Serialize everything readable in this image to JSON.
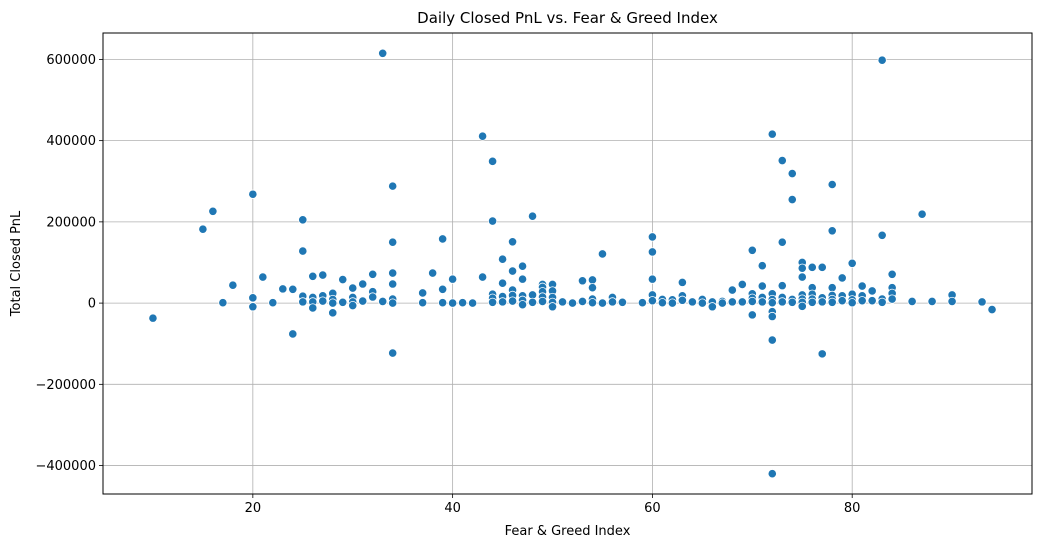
{
  "chart_data": {
    "type": "scatter",
    "title": "Daily Closed PnL vs. Fear & Greed Index",
    "xlabel": "Fear & Greed Index",
    "ylabel": "Total Closed PnL",
    "xlim": [
      5,
      98
    ],
    "ylim": [
      -470000,
      665000
    ],
    "xticks": [
      20,
      40,
      60,
      80
    ],
    "xtick_labels": [
      "20",
      "40",
      "60",
      "80"
    ],
    "yticks": [
      -400000,
      -200000,
      0,
      200000,
      400000,
      600000
    ],
    "ytick_labels": [
      "−400000",
      "−200000",
      "0",
      "200000",
      "400000",
      "600000"
    ],
    "grid": true,
    "marker_color": "#1f77b4",
    "points": [
      {
        "x": 10,
        "y": -37000
      },
      {
        "x": 15,
        "y": 182000
      },
      {
        "x": 16,
        "y": 226000
      },
      {
        "x": 17,
        "y": 1000
      },
      {
        "x": 18,
        "y": 44000
      },
      {
        "x": 20,
        "y": 268000
      },
      {
        "x": 20,
        "y": 13000
      },
      {
        "x": 20,
        "y": -9000
      },
      {
        "x": 21,
        "y": 64000
      },
      {
        "x": 22,
        "y": 1000
      },
      {
        "x": 23,
        "y": 35000
      },
      {
        "x": 24,
        "y": 34000
      },
      {
        "x": 24,
        "y": -76000
      },
      {
        "x": 25,
        "y": 205000
      },
      {
        "x": 25,
        "y": 128000
      },
      {
        "x": 25,
        "y": 17000
      },
      {
        "x": 25,
        "y": 3000
      },
      {
        "x": 26,
        "y": 66000
      },
      {
        "x": 26,
        "y": 14000
      },
      {
        "x": 26,
        "y": 3000
      },
      {
        "x": 26,
        "y": -12000
      },
      {
        "x": 27,
        "y": 69000
      },
      {
        "x": 27,
        "y": 18000
      },
      {
        "x": 27,
        "y": 5000
      },
      {
        "x": 28,
        "y": 24000
      },
      {
        "x": 28,
        "y": 9000
      },
      {
        "x": 28,
        "y": 0
      },
      {
        "x": 28,
        "y": -24000
      },
      {
        "x": 29,
        "y": 58000
      },
      {
        "x": 29,
        "y": 2000
      },
      {
        "x": 30,
        "y": 37000
      },
      {
        "x": 30,
        "y": 14000
      },
      {
        "x": 30,
        "y": 3000
      },
      {
        "x": 30,
        "y": -6000
      },
      {
        "x": 31,
        "y": 47000
      },
      {
        "x": 31,
        "y": 5000
      },
      {
        "x": 32,
        "y": 71000
      },
      {
        "x": 32,
        "y": 28000
      },
      {
        "x": 32,
        "y": 15000
      },
      {
        "x": 33,
        "y": 615000
      },
      {
        "x": 33,
        "y": 4000
      },
      {
        "x": 34,
        "y": 288000
      },
      {
        "x": 34,
        "y": 150000
      },
      {
        "x": 34,
        "y": 74000
      },
      {
        "x": 34,
        "y": 47000
      },
      {
        "x": 34,
        "y": 10000
      },
      {
        "x": 34,
        "y": 0
      },
      {
        "x": 34,
        "y": -123000
      },
      {
        "x": 37,
        "y": 25000
      },
      {
        "x": 37,
        "y": 1000
      },
      {
        "x": 38,
        "y": 74000
      },
      {
        "x": 39,
        "y": 158000
      },
      {
        "x": 39,
        "y": 34000
      },
      {
        "x": 39,
        "y": 1000
      },
      {
        "x": 40,
        "y": 59000
      },
      {
        "x": 40,
        "y": 0
      },
      {
        "x": 41,
        "y": 1000
      },
      {
        "x": 42,
        "y": 0
      },
      {
        "x": 43,
        "y": 411000
      },
      {
        "x": 43,
        "y": 64000
      },
      {
        "x": 44,
        "y": 349000
      },
      {
        "x": 44,
        "y": 202000
      },
      {
        "x": 44,
        "y": 22000
      },
      {
        "x": 44,
        "y": 12000
      },
      {
        "x": 44,
        "y": 2000
      },
      {
        "x": 45,
        "y": 108000
      },
      {
        "x": 45,
        "y": 49000
      },
      {
        "x": 45,
        "y": 16000
      },
      {
        "x": 45,
        "y": 3000
      },
      {
        "x": 46,
        "y": 151000
      },
      {
        "x": 46,
        "y": 79000
      },
      {
        "x": 46,
        "y": 32000
      },
      {
        "x": 46,
        "y": 19000
      },
      {
        "x": 46,
        "y": 5000
      },
      {
        "x": 47,
        "y": 91000
      },
      {
        "x": 47,
        "y": 59000
      },
      {
        "x": 47,
        "y": 18000
      },
      {
        "x": 47,
        "y": 7000
      },
      {
        "x": 47,
        "y": -4000
      },
      {
        "x": 48,
        "y": 214000
      },
      {
        "x": 48,
        "y": 20000
      },
      {
        "x": 48,
        "y": 2000
      },
      {
        "x": 49,
        "y": 46000
      },
      {
        "x": 49,
        "y": 39000
      },
      {
        "x": 49,
        "y": 28000
      },
      {
        "x": 49,
        "y": 15000
      },
      {
        "x": 49,
        "y": 4000
      },
      {
        "x": 50,
        "y": 46000
      },
      {
        "x": 50,
        "y": 30000
      },
      {
        "x": 50,
        "y": 14000
      },
      {
        "x": 50,
        "y": 2000
      },
      {
        "x": 50,
        "y": -9000
      },
      {
        "x": 51,
        "y": 3000
      },
      {
        "x": 52,
        "y": 0
      },
      {
        "x": 53,
        "y": 55000
      },
      {
        "x": 53,
        "y": 4000
      },
      {
        "x": 54,
        "y": 57000
      },
      {
        "x": 54,
        "y": 38000
      },
      {
        "x": 54,
        "y": 10000
      },
      {
        "x": 54,
        "y": 1000
      },
      {
        "x": 55,
        "y": 121000
      },
      {
        "x": 55,
        "y": 0
      },
      {
        "x": 56,
        "y": 14000
      },
      {
        "x": 56,
        "y": 3000
      },
      {
        "x": 57,
        "y": 2000
      },
      {
        "x": 59,
        "y": 1000
      },
      {
        "x": 60,
        "y": 163000
      },
      {
        "x": 60,
        "y": 126000
      },
      {
        "x": 60,
        "y": 59000
      },
      {
        "x": 60,
        "y": 20000
      },
      {
        "x": 60,
        "y": 6000
      },
      {
        "x": 61,
        "y": 9000
      },
      {
        "x": 61,
        "y": 1000
      },
      {
        "x": 62,
        "y": 8000
      },
      {
        "x": 62,
        "y": 0
      },
      {
        "x": 63,
        "y": 51000
      },
      {
        "x": 63,
        "y": 18000
      },
      {
        "x": 63,
        "y": 7000
      },
      {
        "x": 64,
        "y": 3000
      },
      {
        "x": 65,
        "y": 9000
      },
      {
        "x": 65,
        "y": 0
      },
      {
        "x": 66,
        "y": 3000
      },
      {
        "x": 66,
        "y": -9000
      },
      {
        "x": 67,
        "y": 4000
      },
      {
        "x": 67,
        "y": 0
      },
      {
        "x": 68,
        "y": 32000
      },
      {
        "x": 68,
        "y": 3000
      },
      {
        "x": 69,
        "y": 46000
      },
      {
        "x": 69,
        "y": 3000
      },
      {
        "x": 70,
        "y": 130000
      },
      {
        "x": 70,
        "y": 23000
      },
      {
        "x": 70,
        "y": 12000
      },
      {
        "x": 70,
        "y": 4000
      },
      {
        "x": 70,
        "y": -29000
      },
      {
        "x": 71,
        "y": 92000
      },
      {
        "x": 71,
        "y": 42000
      },
      {
        "x": 71,
        "y": 14000
      },
      {
        "x": 71,
        "y": 3000
      },
      {
        "x": 72,
        "y": 416000
      },
      {
        "x": 72,
        "y": 23000
      },
      {
        "x": 72,
        "y": 9000
      },
      {
        "x": 72,
        "y": 1000
      },
      {
        "x": 72,
        "y": -21000
      },
      {
        "x": 72,
        "y": -33000
      },
      {
        "x": 72,
        "y": -91000
      },
      {
        "x": 72,
        "y": -420000
      },
      {
        "x": 73,
        "y": 351000
      },
      {
        "x": 73,
        "y": 150000
      },
      {
        "x": 73,
        "y": 43000
      },
      {
        "x": 73,
        "y": 14000
      },
      {
        "x": 73,
        "y": 3000
      },
      {
        "x": 74,
        "y": 319000
      },
      {
        "x": 74,
        "y": 255000
      },
      {
        "x": 74,
        "y": 9000
      },
      {
        "x": 74,
        "y": 2000
      },
      {
        "x": 75,
        "y": 100000
      },
      {
        "x": 75,
        "y": 86000
      },
      {
        "x": 75,
        "y": 64000
      },
      {
        "x": 75,
        "y": 20000
      },
      {
        "x": 75,
        "y": 10000
      },
      {
        "x": 75,
        "y": 2000
      },
      {
        "x": 75,
        "y": -8000
      },
      {
        "x": 76,
        "y": 88000
      },
      {
        "x": 76,
        "y": 38000
      },
      {
        "x": 76,
        "y": 22000
      },
      {
        "x": 76,
        "y": 10000
      },
      {
        "x": 76,
        "y": 2000
      },
      {
        "x": 77,
        "y": 88000
      },
      {
        "x": 77,
        "y": 13000
      },
      {
        "x": 77,
        "y": 3000
      },
      {
        "x": 77,
        "y": -125000
      },
      {
        "x": 78,
        "y": 292000
      },
      {
        "x": 78,
        "y": 178000
      },
      {
        "x": 78,
        "y": 38000
      },
      {
        "x": 78,
        "y": 19000
      },
      {
        "x": 78,
        "y": 9000
      },
      {
        "x": 78,
        "y": 2000
      },
      {
        "x": 79,
        "y": 62000
      },
      {
        "x": 79,
        "y": 18000
      },
      {
        "x": 79,
        "y": 6000
      },
      {
        "x": 80,
        "y": 98000
      },
      {
        "x": 80,
        "y": 22000
      },
      {
        "x": 80,
        "y": 8000
      },
      {
        "x": 80,
        "y": 1000
      },
      {
        "x": 81,
        "y": 42000
      },
      {
        "x": 81,
        "y": 18000
      },
      {
        "x": 81,
        "y": 6000
      },
      {
        "x": 82,
        "y": 30000
      },
      {
        "x": 82,
        "y": 6000
      },
      {
        "x": 83,
        "y": 598000
      },
      {
        "x": 83,
        "y": 167000
      },
      {
        "x": 83,
        "y": 10000
      },
      {
        "x": 83,
        "y": 2000
      },
      {
        "x": 84,
        "y": 71000
      },
      {
        "x": 84,
        "y": 38000
      },
      {
        "x": 84,
        "y": 24000
      },
      {
        "x": 84,
        "y": 10000
      },
      {
        "x": 86,
        "y": 4000
      },
      {
        "x": 87,
        "y": 219000
      },
      {
        "x": 88,
        "y": 4000
      },
      {
        "x": 90,
        "y": 20000
      },
      {
        "x": 90,
        "y": 4000
      },
      {
        "x": 93,
        "y": 3000
      },
      {
        "x": 94,
        "y": -16000
      }
    ]
  }
}
